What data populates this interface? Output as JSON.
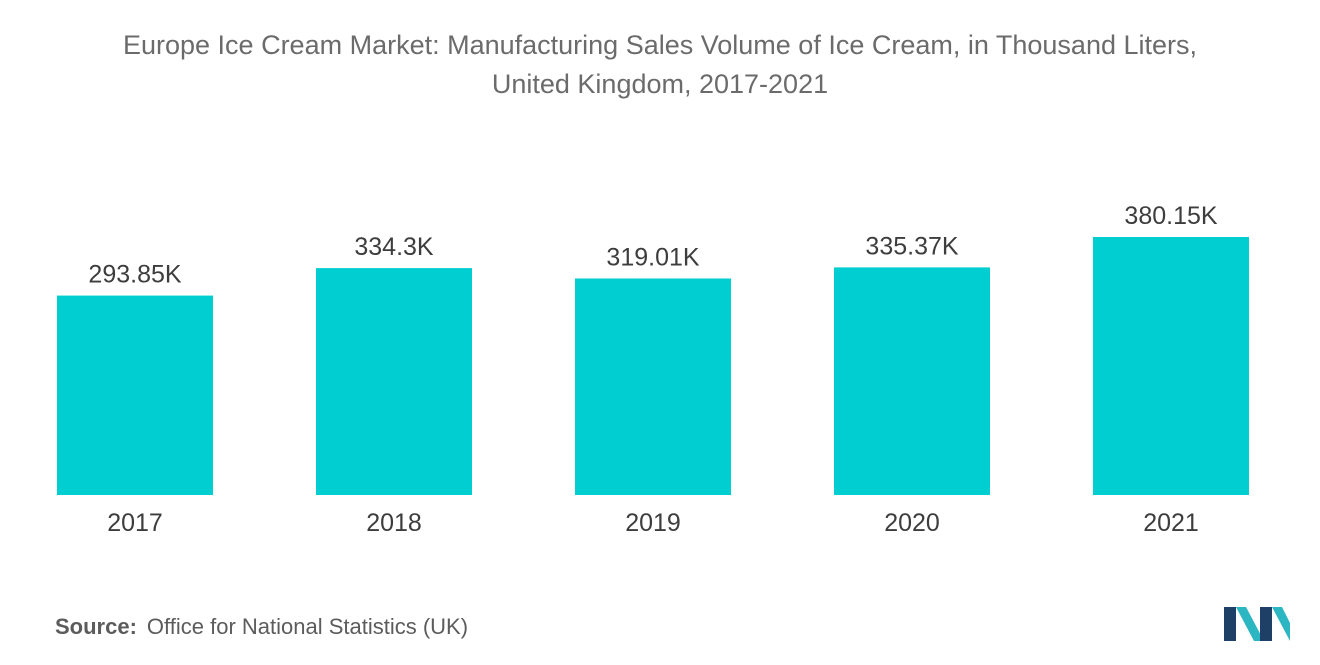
{
  "title": {
    "line1": "Europe Ice Cream Market: Manufacturing Sales Volume of Ice Cream, in Thousand Liters,",
    "line2": "United Kingdom, 2017-2021"
  },
  "source": {
    "label": "Source:",
    "text": "Office for National Statistics (UK)"
  },
  "logo": {
    "icon": "mordor-intelligence-logo-icon",
    "colors": [
      "#1e3f66",
      "#2bb6c2"
    ]
  },
  "colors": {
    "bar": "#00ced1",
    "title": "#6b6b6b",
    "text": "#3d3d3d"
  },
  "chart_data": {
    "type": "bar",
    "categories": [
      "2017",
      "2018",
      "2019",
      "2020",
      "2021"
    ],
    "values": [
      293.85,
      334.3,
      319.01,
      335.37,
      380.15
    ],
    "data_labels": [
      "293.85K",
      "334.3K",
      "319.01K",
      "335.37K",
      "380.15K"
    ],
    "title": "Europe Ice Cream Market: Manufacturing Sales Volume of Ice Cream, in Thousand Liters, United Kingdom, 2017-2021",
    "xlabel": "",
    "ylabel": "",
    "ylim": [
      0,
      380.15
    ],
    "grid": false,
    "legend": "none"
  }
}
